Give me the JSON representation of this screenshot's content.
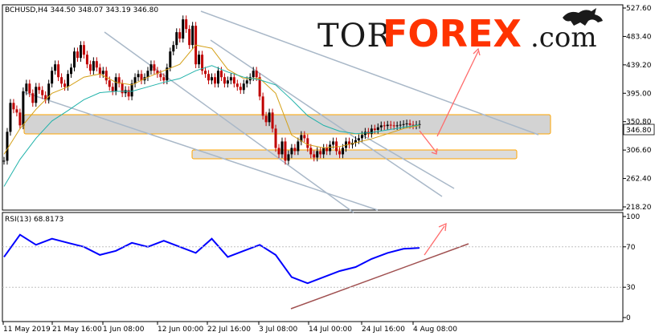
{
  "header": {
    "symbol_line": "BCHUSD,H4  344.50 348.07 343.19 346.80",
    "rsi_label": "RSI(13) 68.8173"
  },
  "logo": {
    "part1": "TOR",
    "part2": "FOREX",
    "part3": ".com"
  },
  "colors": {
    "candle_up": "#000000",
    "candle_down": "#c00000",
    "ma_slow": "#20b2aa",
    "ma_fast": "#d4a017",
    "trendline": "#a9b8c8",
    "zone_fill": "#d3d3d3",
    "zone_border": "#ffa500",
    "arrow": "#ff6b6b",
    "rsi_line": "#0000ff",
    "rsi_support": "#a05050"
  },
  "chart_data": {
    "type": "line",
    "price": {
      "yticks": [
        "527.60",
        "483.40",
        "439.20",
        "395.00",
        "350.80",
        "306.60",
        "262.40",
        "218.20"
      ],
      "ylim": [
        218.2,
        527.6
      ],
      "current_price": "346.80",
      "ohlc": {
        "open": 344.5,
        "high": 348.07,
        "low": 343.19,
        "close": 346.8
      }
    },
    "x_ticks": [
      "11 May 2019",
      "21 May 16:00",
      "1 Jun 08:00",
      "12 Jun 00:00",
      "22 Jul 16:00",
      "3 Jul 08:00",
      "14 Jul 00:00",
      "24 Jul 16:00",
      "4 Aug 08:00"
    ],
    "series": [
      {
        "x": [
          0,
          4,
          8,
          12,
          16,
          20,
          24,
          28,
          32,
          36,
          40,
          44,
          48,
          52,
          56,
          60,
          64,
          68,
          72,
          76,
          80,
          84,
          88,
          92,
          96,
          100,
          104,
          108,
          112,
          116,
          120,
          124,
          128,
          132,
          136,
          140,
          144,
          148,
          152,
          156,
          160,
          164,
          168,
          172,
          176,
          180,
          184,
          188,
          192,
          196,
          200,
          204,
          208,
          212,
          216,
          220,
          224,
          228,
          232,
          236,
          240,
          244,
          248,
          252,
          256,
          260,
          264,
          268,
          272,
          276,
          280,
          284,
          288,
          292,
          296,
          300,
          304,
          308,
          312,
          316,
          320,
          324,
          328,
          332,
          336,
          340,
          344,
          348,
          352,
          356,
          360,
          364,
          368,
          372,
          376,
          380,
          384,
          388,
          392,
          396,
          400,
          404,
          408,
          412,
          416,
          420,
          424,
          428,
          432,
          436,
          440,
          444,
          448,
          452,
          456,
          460,
          464,
          468,
          472,
          476,
          480,
          484,
          488,
          492,
          496,
          500,
          504,
          508,
          512,
          516,
          520
        ],
        "values": [
          290,
          335,
          380,
          370,
          365,
          345,
          398,
          410,
          395,
          380,
          405,
          400,
          392,
          385,
          410,
          430,
          440,
          420,
          410,
          405,
          425,
          435,
          460,
          450,
          470,
          455,
          440,
          430,
          445,
          435,
          425,
          430,
          415,
          405,
          398,
          420,
          410,
          395,
          400,
          390,
          410,
          420,
          425,
          415,
          420,
          430,
          440,
          430,
          425,
          420,
          415,
          435,
          460,
          470,
          490,
          480,
          510,
          495,
          470,
          500,
          440,
          455,
          430,
          425,
          415,
          420,
          410,
          430,
          420,
          410,
          415,
          420,
          410,
          405,
          400,
          410,
          415,
          420,
          430,
          420,
          390,
          360,
          350,
          365,
          340,
          310,
          300,
          320,
          290,
          300,
          310,
          305,
          320,
          330,
          325,
          310,
          300,
          295,
          305,
          300,
          310,
          305,
          315,
          320,
          305,
          300,
          310,
          320,
          315,
          318,
          322,
          325,
          330,
          335,
          332,
          340,
          338,
          342,
          345,
          344,
          346,
          345,
          344,
          345,
          346,
          347,
          348,
          346,
          345,
          346,
          347
        ]
      },
      {
        "x": [
          0,
          20,
          40,
          60,
          80,
          100,
          120,
          140,
          160,
          180,
          200,
          220,
          240,
          260,
          280,
          300,
          320,
          340,
          360,
          380,
          400,
          420,
          440,
          460,
          480,
          500,
          520
        ],
        "values": [
          300,
          340,
          370,
          395,
          405,
          420,
          425,
          412,
          408,
          420,
          430,
          440,
          470,
          465,
          432,
          418,
          418,
          395,
          330,
          315,
          310,
          312,
          318,
          324,
          332,
          340,
          345
        ]
      },
      {
        "x": [
          0,
          20,
          40,
          60,
          80,
          100,
          120,
          140,
          160,
          180,
          200,
          220,
          240,
          260,
          280,
          300,
          320,
          340,
          360,
          380,
          400,
          420,
          440,
          460,
          480,
          500,
          520
        ],
        "values": [
          250,
          292,
          325,
          352,
          368,
          385,
          396,
          398,
          398,
          405,
          412,
          418,
          430,
          438,
          428,
          420,
          416,
          408,
          385,
          360,
          345,
          336,
          332,
          334,
          338,
          342,
          346
        ]
      },
      {
        "x": [
          0,
          20,
          40,
          60,
          80,
          100,
          120,
          140,
          160,
          180,
          200,
          220,
          240,
          260,
          280,
          300,
          320,
          340,
          360,
          380,
          400,
          420,
          440,
          460,
          480,
          500,
          520
        ],
        "values": [
          60,
          82,
          72,
          78,
          74,
          70,
          62,
          66,
          74,
          70,
          76,
          70,
          64,
          78,
          60,
          66,
          72,
          62,
          40,
          34,
          40,
          46,
          50,
          58,
          64,
          68,
          69
        ]
      }
    ],
    "rsi": {
      "yticks": [
        "100",
        "70",
        "30",
        "0"
      ],
      "ylim": [
        0,
        100
      ],
      "value": "68.8173"
    }
  }
}
